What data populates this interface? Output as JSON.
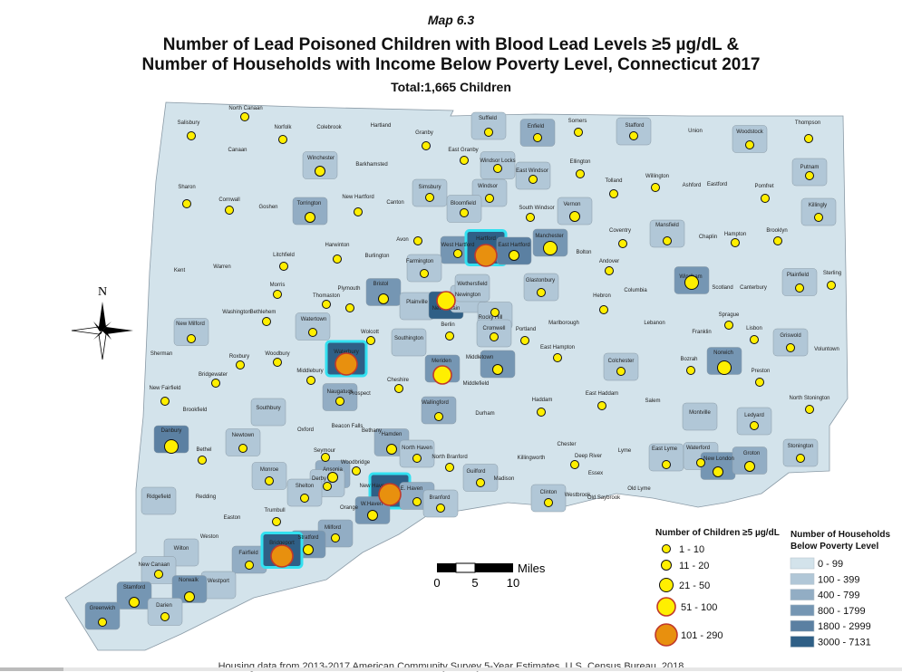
{
  "header": {
    "map_number": "Map 6.3",
    "title_line1": "Number of Lead Poisoned Children with Blood Lead Levels ≥5 µg/dL &",
    "title_line2": "Number of Households with Income Below Poverty Level, Connecticut 2017",
    "total": "Total:1,665 Children"
  },
  "footer": "Housing data from 2013-2017 American Community Survey 5-Year Estimates, U.S. Census Bureau, 2018",
  "compass": {
    "north_label": "N"
  },
  "scale_bar": {
    "ticks": [
      "0",
      "5",
      "10"
    ],
    "unit": "Miles"
  },
  "legend_children": {
    "title": "Number of Children ≥5 µg/dL",
    "classes": [
      "1 - 10",
      "11 - 20",
      "21 - 50",
      "51 - 100",
      "101 - 290"
    ],
    "colors": [
      "#ffef00",
      "#ffef00",
      "#ffef00",
      "#ffef00",
      "#e8900e"
    ]
  },
  "legend_households": {
    "title_line1": "Number of  Households",
    "title_line2": "Below Poverty Level",
    "classes": [
      "0 - 99",
      "100 - 399",
      "400 - 799",
      "800 - 1799",
      "1800 - 2999",
      "3000 - 7131"
    ],
    "colors": [
      "#d3e3eb",
      "#b1c7d7",
      "#92adc4",
      "#7596b3",
      "#5b80a2",
      "#2f5f86"
    ]
  },
  "highlight_color": "#33e0f0",
  "towns": [
    {
      "name": "Salisbury",
      "c": 1,
      "p": 0
    },
    {
      "name": "North Canaan",
      "c": 1,
      "p": 0
    },
    {
      "name": "Norfolk",
      "c": 1,
      "p": 0
    },
    {
      "name": "Colebrook",
      "c": 0,
      "p": 0
    },
    {
      "name": "Hartland",
      "c": 0,
      "p": 0
    },
    {
      "name": "Granby",
      "c": 1,
      "p": 0
    },
    {
      "name": "East Granby",
      "c": 1,
      "p": 0
    },
    {
      "name": "Suffield",
      "c": 1,
      "p": 1
    },
    {
      "name": "Enfield",
      "c": 1,
      "p": 2
    },
    {
      "name": "Somers",
      "c": 1,
      "p": 0
    },
    {
      "name": "Stafford",
      "c": 1,
      "p": 1
    },
    {
      "name": "Union",
      "c": 0,
      "p": 0
    },
    {
      "name": "Woodstock",
      "c": 1,
      "p": 1
    },
    {
      "name": "Thompson",
      "c": 1,
      "p": 0
    },
    {
      "name": "Canaan",
      "c": 0,
      "p": 0
    },
    {
      "name": "Winchester",
      "c": 2,
      "p": 1
    },
    {
      "name": "Barkhamsted",
      "c": 0,
      "p": 0
    },
    {
      "name": "Windsor Locks",
      "c": 1,
      "p": 1
    },
    {
      "name": "East Windsor",
      "c": 1,
      "p": 1
    },
    {
      "name": "Ellington",
      "c": 1,
      "p": 0
    },
    {
      "name": "Willington",
      "c": 1,
      "p": 0
    },
    {
      "name": "Ashford",
      "c": 0,
      "p": 0
    },
    {
      "name": "Eastford",
      "c": 0,
      "p": 0
    },
    {
      "name": "Pomfret",
      "c": 1,
      "p": 0
    },
    {
      "name": "Putnam",
      "c": 1,
      "p": 1
    },
    {
      "name": "Sharon",
      "c": 1,
      "p": 0
    },
    {
      "name": "Cornwall",
      "c": 1,
      "p": 0
    },
    {
      "name": "Goshen",
      "c": 0,
      "p": 0
    },
    {
      "name": "Torrington",
      "c": 2,
      "p": 2
    },
    {
      "name": "New Hartford",
      "c": 1,
      "p": 0
    },
    {
      "name": "Canton",
      "c": 0,
      "p": 0
    },
    {
      "name": "Simsbury",
      "c": 1,
      "p": 1
    },
    {
      "name": "Windsor",
      "c": 1,
      "p": 1
    },
    {
      "name": "Bloomfield",
      "c": 1,
      "p": 1
    },
    {
      "name": "South Windsor",
      "c": 1,
      "p": 0
    },
    {
      "name": "Vernon",
      "c": 2,
      "p": 1
    },
    {
      "name": "Tolland",
      "c": 1,
      "p": 0
    },
    {
      "name": "Killingly",
      "c": 1,
      "p": 1
    },
    {
      "name": "Coventry",
      "c": 1,
      "p": 0
    },
    {
      "name": "Mansfield",
      "c": 1,
      "p": 1
    },
    {
      "name": "Chaplin",
      "c": 0,
      "p": 0
    },
    {
      "name": "Hampton",
      "c": 1,
      "p": 0
    },
    {
      "name": "Brooklyn",
      "c": 1,
      "p": 0
    },
    {
      "name": "Kent",
      "c": 0,
      "p": 0
    },
    {
      "name": "Warren",
      "c": 0,
      "p": 0
    },
    {
      "name": "Litchfield",
      "c": 1,
      "p": 0
    },
    {
      "name": "Harwinton",
      "c": 1,
      "p": 0
    },
    {
      "name": "Burlington",
      "c": 0,
      "p": 0
    },
    {
      "name": "Avon",
      "c": 1,
      "p": 0
    },
    {
      "name": "West Hartford",
      "c": 1,
      "p": 3
    },
    {
      "name": "Hartford",
      "c": 5,
      "p": 5
    },
    {
      "name": "East Hartford",
      "c": 2,
      "p": 4
    },
    {
      "name": "Manchester",
      "c": 3,
      "p": 3
    },
    {
      "name": "Bolton",
      "c": 0,
      "p": 0
    },
    {
      "name": "Andover",
      "c": 1,
      "p": 0
    },
    {
      "name": "Windham",
      "c": 3,
      "p": 3
    },
    {
      "name": "Scotland",
      "c": 0,
      "p": 0
    },
    {
      "name": "Canterbury",
      "c": 0,
      "p": 0
    },
    {
      "name": "Plainfield",
      "c": 1,
      "p": 1
    },
    {
      "name": "Sterling",
      "c": 1,
      "p": 0
    },
    {
      "name": "Farmington",
      "c": 1,
      "p": 1
    },
    {
      "name": "Washington",
      "c": 0,
      "p": 0
    },
    {
      "name": "Morris",
      "c": 1,
      "p": 0
    },
    {
      "name": "Thomaston",
      "c": 1,
      "p": 0
    },
    {
      "name": "Plymouth",
      "c": 1,
      "p": 0
    },
    {
      "name": "Bristol",
      "c": 2,
      "p": 3
    },
    {
      "name": "Plainville",
      "c": 0,
      "p": 1
    },
    {
      "name": "New Britain",
      "c": 4,
      "p": 5
    },
    {
      "name": "Newington",
      "c": 0,
      "p": 1
    },
    {
      "name": "Wethersfield",
      "c": 0,
      "p": 1
    },
    {
      "name": "Glastonbury",
      "c": 1,
      "p": 1
    },
    {
      "name": "Hebron",
      "c": 1,
      "p": 0
    },
    {
      "name": "Columbia",
      "c": 0,
      "p": 0
    },
    {
      "name": "Bethlehem",
      "c": 1,
      "p": 0
    },
    {
      "name": "Watertown",
      "c": 1,
      "p": 1
    },
    {
      "name": "Wolcott",
      "c": 1,
      "p": 0
    },
    {
      "name": "Southington",
      "c": 0,
      "p": 1
    },
    {
      "name": "Berlin",
      "c": 1,
      "p": 0
    },
    {
      "name": "Rocky Hill",
      "c": 1,
      "p": 1
    },
    {
      "name": "Cromwell",
      "c": 1,
      "p": 1
    },
    {
      "name": "Portland",
      "c": 1,
      "p": 0
    },
    {
      "name": "Marlborough",
      "c": 0,
      "p": 0
    },
    {
      "name": "Lebanon",
      "c": 0,
      "p": 0
    },
    {
      "name": "Franklin",
      "c": 0,
      "p": 0
    },
    {
      "name": "Sprague",
      "c": 1,
      "p": 0
    },
    {
      "name": "Lisbon",
      "c": 1,
      "p": 0
    },
    {
      "name": "Griswold",
      "c": 1,
      "p": 1
    },
    {
      "name": "Voluntown",
      "c": 0,
      "p": 0
    },
    {
      "name": "New Milford",
      "c": 1,
      "p": 1
    },
    {
      "name": "Sherman",
      "c": 0,
      "p": 0
    },
    {
      "name": "Roxbury",
      "c": 1,
      "p": 0
    },
    {
      "name": "Woodbury",
      "c": 1,
      "p": 0
    },
    {
      "name": "Waterbury",
      "c": 5,
      "p": 5
    },
    {
      "name": "Middlebury",
      "c": 1,
      "p": 0
    },
    {
      "name": "Naugatuck",
      "c": 1,
      "p": 2
    },
    {
      "name": "Prospect",
      "c": 0,
      "p": 0
    },
    {
      "name": "Cheshire",
      "c": 1,
      "p": 0
    },
    {
      "name": "Meriden",
      "c": 4,
      "p": 3
    },
    {
      "name": "Middletown",
      "c": 2,
      "p": 3
    },
    {
      "name": "Middlefield",
      "c": 0,
      "p": 0
    },
    {
      "name": "East Hampton",
      "c": 1,
      "p": 0
    },
    {
      "name": "Colchester",
      "c": 1,
      "p": 1
    },
    {
      "name": "Bozrah",
      "c": 1,
      "p": 0
    },
    {
      "name": "Norwich",
      "c": 3,
      "p": 3
    },
    {
      "name": "Preston",
      "c": 1,
      "p": 0
    },
    {
      "name": "Bridgewater",
      "c": 1,
      "p": 0
    },
    {
      "name": "New Fairfield",
      "c": 1,
      "p": 0
    },
    {
      "name": "Brookfield",
      "c": 0,
      "p": 0
    },
    {
      "name": "Southbury",
      "c": 0,
      "p": 1
    },
    {
      "name": "Oxford",
      "c": 0,
      "p": 0
    },
    {
      "name": "Beacon Falls",
      "c": 0,
      "p": 0
    },
    {
      "name": "Bethany",
      "c": 0,
      "p": 0
    },
    {
      "name": "Wallingford",
      "c": 1,
      "p": 2
    },
    {
      "name": "Durham",
      "c": 0,
      "p": 0
    },
    {
      "name": "Haddam",
      "c": 1,
      "p": 0
    },
    {
      "name": "East Haddam",
      "c": 1,
      "p": 0
    },
    {
      "name": "Salem",
      "c": 0,
      "p": 0
    },
    {
      "name": "Montville",
      "c": 0,
      "p": 1
    },
    {
      "name": "Ledyard",
      "c": 1,
      "p": 1
    },
    {
      "name": "North Stonington",
      "c": 1,
      "p": 0
    },
    {
      "name": "Danbury",
      "c": 3,
      "p": 4
    },
    {
      "name": "Bethel",
      "c": 1,
      "p": 0
    },
    {
      "name": "Newtown",
      "c": 1,
      "p": 1
    },
    {
      "name": "Hamden",
      "c": 2,
      "p": 2
    },
    {
      "name": "North Haven",
      "c": 1,
      "p": 1
    },
    {
      "name": "North Branford",
      "c": 1,
      "p": 0
    },
    {
      "name": "Chester",
      "c": 0,
      "p": 0
    },
    {
      "name": "Lyme",
      "c": 0,
      "p": 0
    },
    {
      "name": "East Lyme",
      "c": 1,
      "p": 1
    },
    {
      "name": "Waterford",
      "c": 1,
      "p": 1
    },
    {
      "name": "New London",
      "c": 2,
      "p": 3
    },
    {
      "name": "Groton",
      "c": 2,
      "p": 2
    },
    {
      "name": "Stonington",
      "c": 1,
      "p": 1
    },
    {
      "name": "Seymour",
      "c": 1,
      "p": 0
    },
    {
      "name": "Woodbridge",
      "c": 1,
      "p": 0
    },
    {
      "name": "Deep River",
      "c": 1,
      "p": 0
    },
    {
      "name": "Killingworth",
      "c": 0,
      "p": 0
    },
    {
      "name": "Monroe",
      "c": 1,
      "p": 1
    },
    {
      "name": "Ansonia",
      "c": 2,
      "p": 2
    },
    {
      "name": "Derby",
      "c": 1,
      "p": 1
    },
    {
      "name": "Guilford",
      "c": 1,
      "p": 1
    },
    {
      "name": "Madison",
      "c": 0,
      "p": 0
    },
    {
      "name": "Essex",
      "c": 0,
      "p": 0
    },
    {
      "name": "Ridgefield",
      "c": 0,
      "p": 1
    },
    {
      "name": "Redding",
      "c": 0,
      "p": 0
    },
    {
      "name": "Shelton",
      "c": 1,
      "p": 1
    },
    {
      "name": "New Haven",
      "c": 5,
      "p": 5
    },
    {
      "name": "E. Haven",
      "c": 1,
      "p": 2
    },
    {
      "name": "Branford",
      "c": 1,
      "p": 1
    },
    {
      "name": "Clinton",
      "c": 1,
      "p": 1
    },
    {
      "name": "Westbrook",
      "c": 0,
      "p": 0
    },
    {
      "name": "Old Saybrook",
      "c": 0,
      "p": 0
    },
    {
      "name": "Old Lyme",
      "c": 0,
      "p": 0
    },
    {
      "name": "Trumbull",
      "c": 1,
      "p": 0
    },
    {
      "name": "Orange",
      "c": 0,
      "p": 0
    },
    {
      "name": "W.Haven",
      "c": 2,
      "p": 3
    },
    {
      "name": "Easton",
      "c": 0,
      "p": 0
    },
    {
      "name": "Weston",
      "c": 0,
      "p": 0
    },
    {
      "name": "Milford",
      "c": 1,
      "p": 2
    },
    {
      "name": "Stratford",
      "c": 2,
      "p": 3
    },
    {
      "name": "Fairfield",
      "c": 1,
      "p": 2
    },
    {
      "name": "Bridgeport",
      "c": 5,
      "p": 5
    },
    {
      "name": "Wilton",
      "c": 0,
      "p": 1
    },
    {
      "name": "New Canaan",
      "c": 1,
      "p": 1
    },
    {
      "name": "Westport",
      "c": 0,
      "p": 1
    },
    {
      "name": "Norwalk",
      "c": 2,
      "p": 3
    },
    {
      "name": "Stamford",
      "c": 2,
      "p": 3
    },
    {
      "name": "Darien",
      "c": 1,
      "p": 1
    },
    {
      "name": "Greenwich",
      "c": 1,
      "p": 3
    }
  ]
}
